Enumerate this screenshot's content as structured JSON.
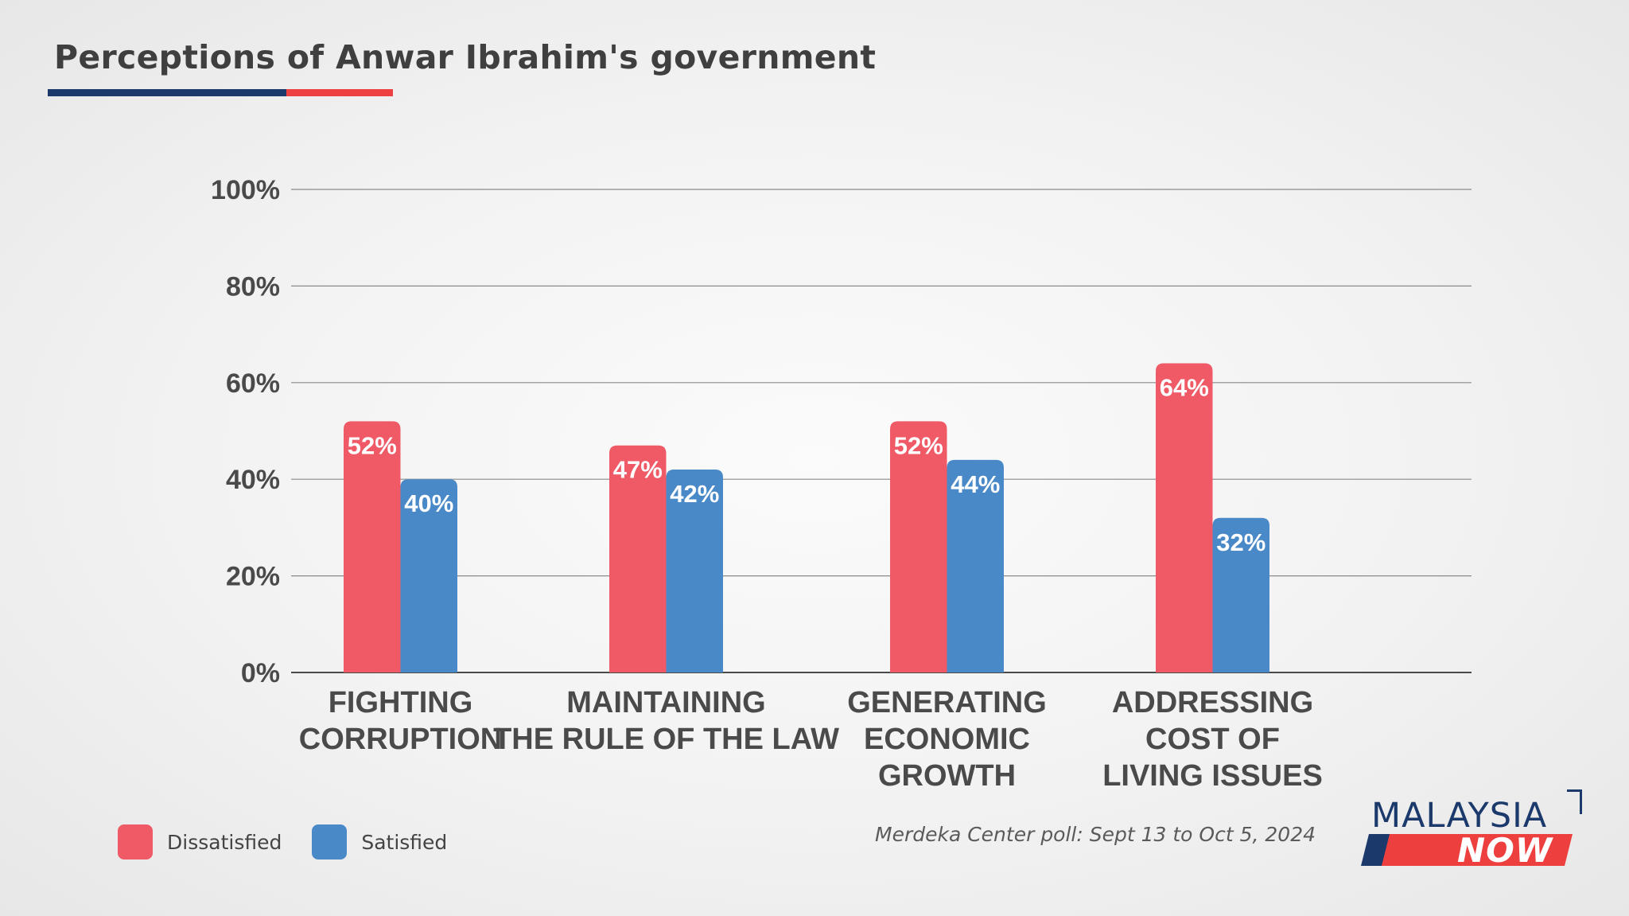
{
  "title": "Perceptions of Anwar Ibrahim's government",
  "colors": {
    "dissatisfied": "#ef5a66",
    "satisfied": "#4a89c8",
    "brand_navy": "#1b3a6b",
    "brand_red": "#ef4041"
  },
  "legend": [
    {
      "label": "Dissatisfied",
      "color": "#ef5a66"
    },
    {
      "label": "Satisfied",
      "color": "#4a89c8"
    }
  ],
  "source": "Merdeka Center poll: Sept 13 to Oct 5, 2024",
  "logo": {
    "top": "MALAYSIA",
    "bottom": "NOW"
  },
  "chart_data": {
    "type": "bar",
    "title": "Perceptions of Anwar Ibrahim's government",
    "xlabel": "",
    "ylabel": "",
    "ylim": [
      0,
      100
    ],
    "yticks": [
      "0%",
      "20%",
      "40%",
      "60%",
      "80%",
      "100%"
    ],
    "ytick_values": [
      0,
      20,
      40,
      60,
      80,
      100
    ],
    "grid": true,
    "legend_position": "bottom-left",
    "categories": [
      [
        "FIGHTING",
        "CORRUPTION"
      ],
      [
        "MAINTAINING",
        "THE RULE OF THE LAW"
      ],
      [
        "GENERATING",
        "ECONOMIC",
        "GROWTH"
      ],
      [
        "ADDRESSING",
        "COST OF",
        "LIVING ISSUES"
      ]
    ],
    "series": [
      {
        "name": "Dissatisfied",
        "color": "#ef5a66",
        "values": [
          52,
          47,
          52,
          64
        ],
        "labels": [
          "52%",
          "47%",
          "52%",
          "64%"
        ]
      },
      {
        "name": "Satisfied",
        "color": "#4a89c8",
        "values": [
          40,
          42,
          44,
          32
        ],
        "labels": [
          "40%",
          "42%",
          "44%",
          "32%"
        ]
      }
    ]
  }
}
